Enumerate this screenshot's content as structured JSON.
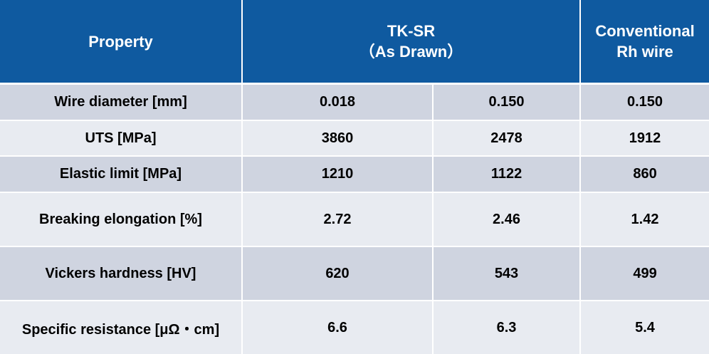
{
  "colors": {
    "header_bg": "#0f5aa0",
    "row_dark": "#cfd4e0",
    "row_light": "#e8ebf1"
  },
  "header": {
    "property": "Property",
    "tksr_line1": "TK-SR",
    "tksr_line2": "（As Drawn）",
    "conv_line1": "Conventional",
    "conv_line2": "Rh wire"
  },
  "rows": [
    {
      "property": "Wire diameter [mm]",
      "tksr_a": "0.018",
      "tksr_b": "0.150",
      "conventional": "0.150"
    },
    {
      "property": "UTS [MPa]",
      "tksr_a": "3860",
      "tksr_b": "2478",
      "conventional": "1912"
    },
    {
      "property": "Elastic limit [MPa]",
      "tksr_a": "1210",
      "tksr_b": "1122",
      "conventional": "860"
    },
    {
      "property": "Breaking elongation [%]",
      "tksr_a": "2.72",
      "tksr_b": "2.46",
      "conventional": "1.42"
    },
    {
      "property": "Vickers hardness [HV]",
      "tksr_a": "620",
      "tksr_b": "543",
      "conventional": "499"
    },
    {
      "property": "Specific resistance [μΩ・cm]",
      "tksr_a": "6.6",
      "tksr_b": "6.3",
      "conventional": "5.4"
    }
  ]
}
